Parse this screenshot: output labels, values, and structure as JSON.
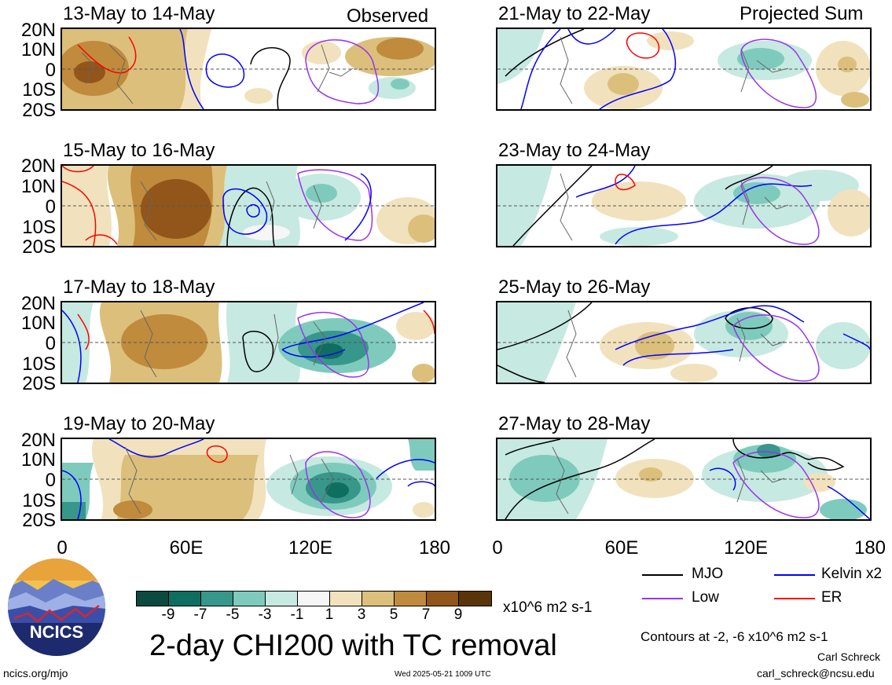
{
  "panels_left": [
    {
      "date": "13-May to 14-May",
      "tag": "Observed"
    },
    {
      "date": "15-May to 16-May",
      "tag": ""
    },
    {
      "date": "17-May to 18-May",
      "tag": ""
    },
    {
      "date": "19-May to 20-May",
      "tag": ""
    }
  ],
  "panels_right": [
    {
      "date": "21-May to 22-May",
      "tag": "Projected Sum"
    },
    {
      "date": "23-May to 24-May",
      "tag": ""
    },
    {
      "date": "25-May to 26-May",
      "tag": ""
    },
    {
      "date": "27-May to 28-May",
      "tag": ""
    }
  ],
  "lat_labels": [
    "20N",
    "10N",
    "0",
    "10S",
    "20S"
  ],
  "lon_labels": [
    "0",
    "60E",
    "120E",
    "180"
  ],
  "legend": {
    "mjo": "MJO",
    "kelvin": "Kelvin x2",
    "low": "Low",
    "er": "ER",
    "colors": {
      "mjo": "#000000",
      "kelvin": "#0000ff",
      "low": "#9933ee",
      "er": "#ff0000"
    }
  },
  "colorbar": {
    "ticks": [
      "-9",
      "-7",
      "-5",
      "-3",
      "-1",
      "1",
      "3",
      "5",
      "7",
      "9"
    ],
    "colors": [
      "#0b4a3f",
      "#0e6e60",
      "#37978a",
      "#7ecbbd",
      "#c6e9e1",
      "#f6f6f6",
      "#f1e2bd",
      "#dcbf7b",
      "#c08b3c",
      "#92561a",
      "#5a3509"
    ],
    "units": "x10^6 m2 s-1"
  },
  "title": "2-day CHI200 with TC removal",
  "contours_note": "Contours at -2, -6 x10^6 m2 s-1",
  "author": "Carl Schreck",
  "email": "carl_schreck@ncsu.edu",
  "url": "ncics.org/mjo",
  "timestamp": "Wed 2025-05-21 1009 UTC",
  "logo_text": "NCICS"
}
